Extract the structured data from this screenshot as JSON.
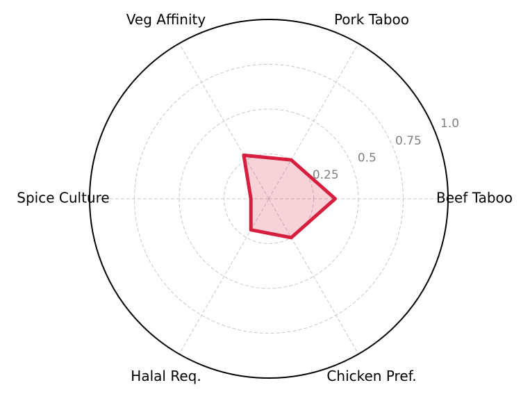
{
  "chart_data": {
    "type": "radar",
    "categories": [
      "Beef Taboo",
      "Pork Taboo",
      "Veg Affinity",
      "Spice Culture",
      "Halal Req.",
      "Chicken Pref."
    ],
    "values": [
      0.37,
      0.25,
      0.28,
      0.1,
      0.2,
      0.25
    ],
    "color": "#d61f3f",
    "ylim": [
      0,
      1
    ],
    "yticks": [
      0.25,
      0.5,
      0.75,
      {
        "value": 1,
        "label": "1.0"
      }
    ],
    "grid": true
  }
}
